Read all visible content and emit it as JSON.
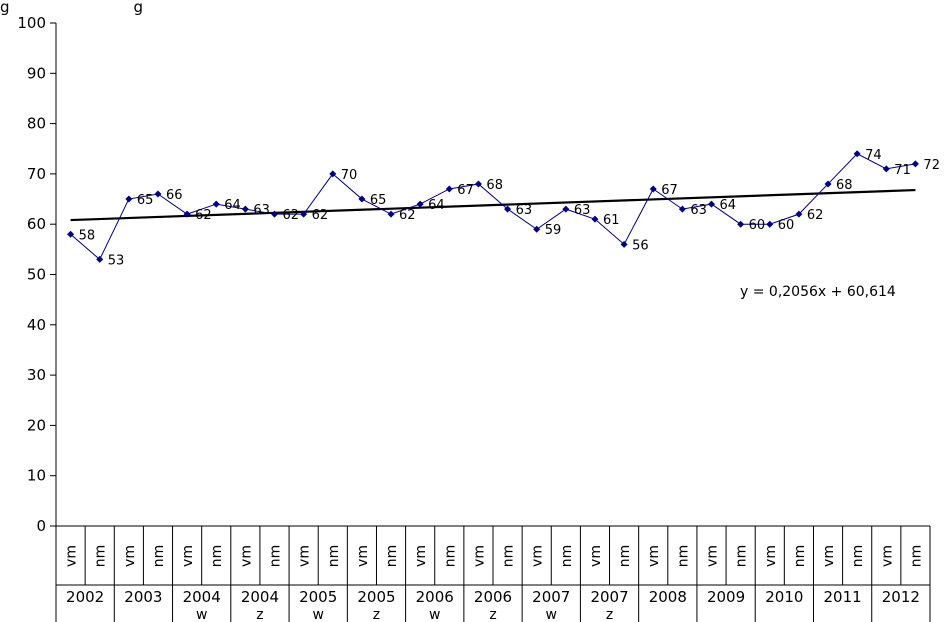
{
  "title_fragment": "g                          g",
  "chart_data": {
    "type": "line",
    "ylim": [
      0,
      100
    ],
    "yticks": [
      0,
      10,
      20,
      30,
      40,
      50,
      60,
      70,
      80,
      90,
      100
    ],
    "groups": [
      {
        "label": "2002",
        "sub": ""
      },
      {
        "label": "2003",
        "sub": ""
      },
      {
        "label": "2004",
        "sub": "w"
      },
      {
        "label": "2004",
        "sub": "z"
      },
      {
        "label": "2005",
        "sub": "w"
      },
      {
        "label": "2005",
        "sub": "z"
      },
      {
        "label": "2006",
        "sub": "w"
      },
      {
        "label": "2006",
        "sub": "z"
      },
      {
        "label": "2007",
        "sub": "w"
      },
      {
        "label": "2007",
        "sub": "z"
      },
      {
        "label": "2008",
        "sub": ""
      },
      {
        "label": "2009",
        "sub": ""
      },
      {
        "label": "2010",
        "sub": ""
      },
      {
        "label": "2011",
        "sub": ""
      },
      {
        "label": "2012",
        "sub": ""
      }
    ],
    "categories": [
      "vm",
      "nm",
      "vm",
      "nm",
      "vm",
      "nm",
      "vm",
      "nm",
      "vm",
      "nm",
      "vm",
      "nm",
      "vm",
      "nm",
      "vm",
      "nm",
      "vm",
      "nm",
      "vm",
      "nm",
      "vm",
      "nm",
      "vm",
      "nm",
      "vm",
      "nm",
      "vm",
      "nm",
      "vm",
      "nm"
    ],
    "series": [
      {
        "values": [
          58,
          53,
          65,
          66,
          62,
          64,
          63,
          62,
          62,
          70,
          65,
          62,
          64,
          67,
          68,
          63,
          59,
          63,
          61,
          56,
          67,
          63,
          64,
          60,
          60,
          62,
          68,
          74,
          71,
          72
        ],
        "color": "#000080"
      }
    ],
    "trendline": {
      "slope": 0.2056,
      "intercept": 60.614,
      "color": "#000000",
      "equation": "y = 0,2056x + 60,614"
    },
    "grid": false,
    "legend": "none"
  }
}
